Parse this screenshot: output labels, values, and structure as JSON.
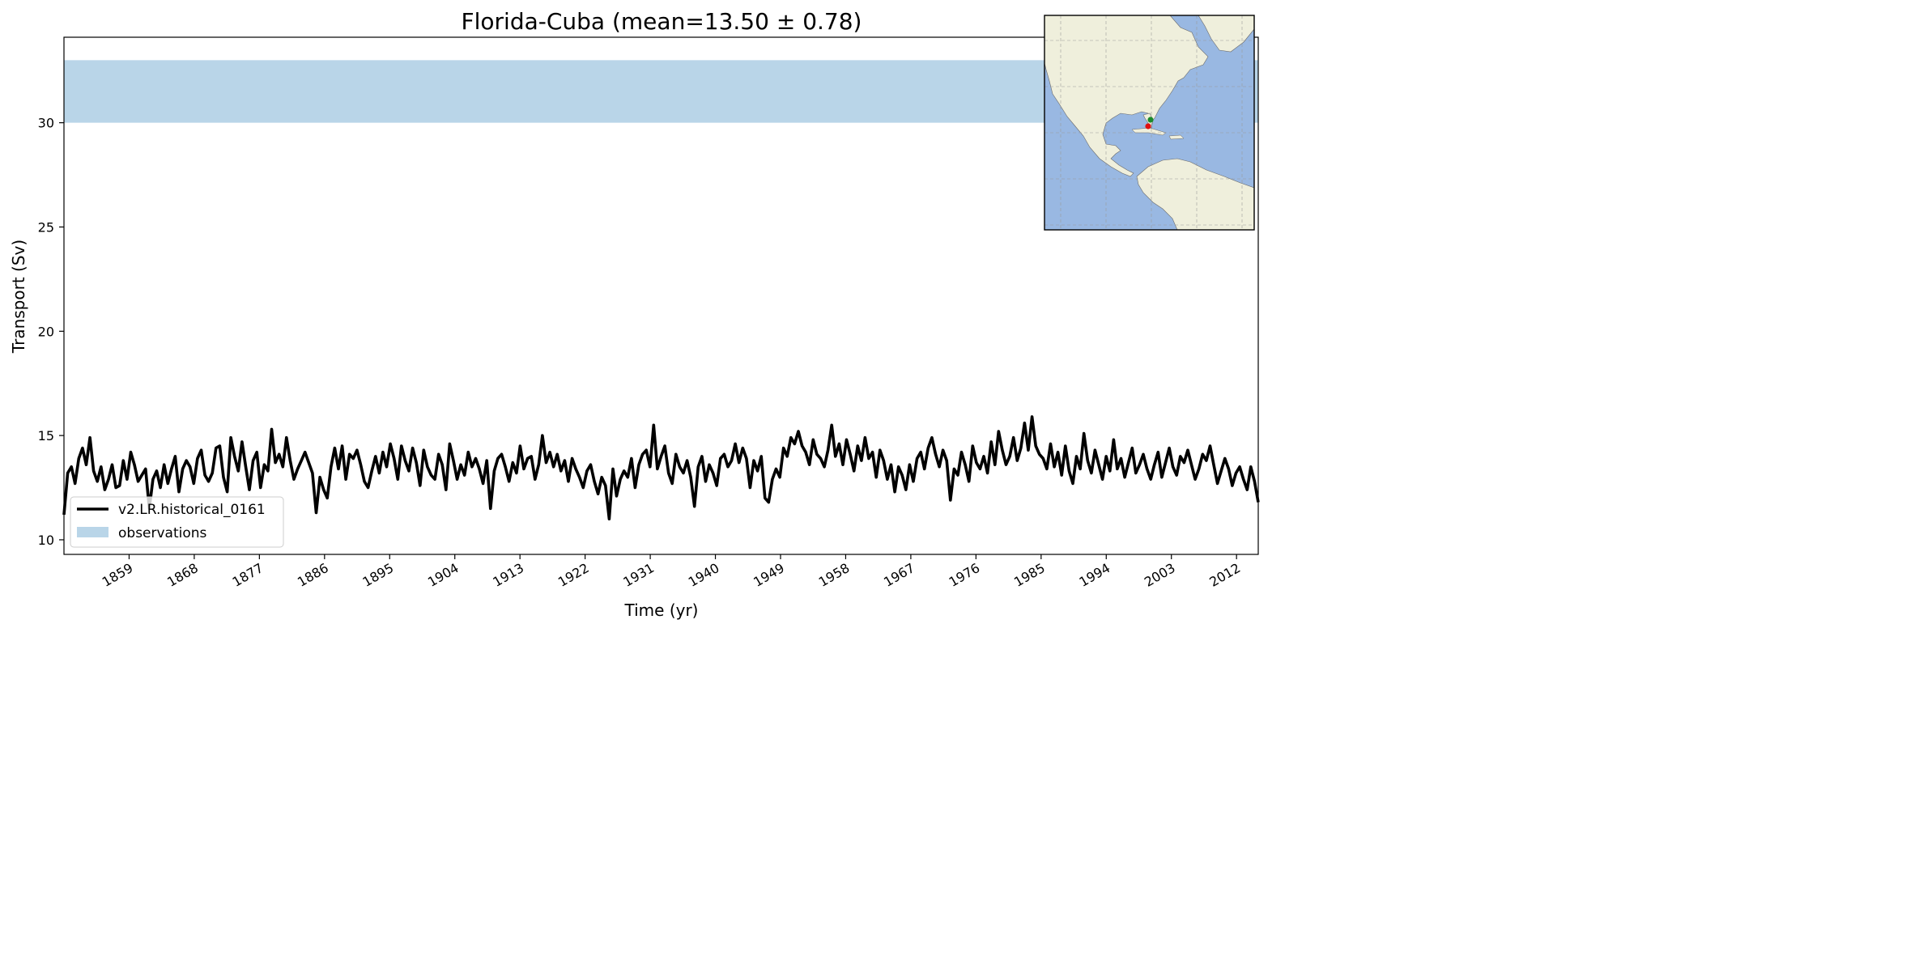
{
  "chart_data": {
    "type": "line",
    "title": "Florida-Cuba (mean=13.50 ± 0.78)",
    "xlabel": "Time (yr)",
    "ylabel": "Transport (Sv)",
    "xlim": [
      1850,
      2015
    ],
    "ylim": [
      9.3,
      34.1
    ],
    "x_ticks": [
      1859,
      1868,
      1877,
      1886,
      1895,
      1904,
      1913,
      1922,
      1931,
      1940,
      1949,
      1958,
      1967,
      1976,
      1985,
      1994,
      2003,
      2012
    ],
    "y_ticks": [
      10,
      15,
      20,
      25,
      30
    ],
    "grid": false,
    "legend_position": "lower-left",
    "series": [
      {
        "name": "v2.LR.historical_0161",
        "color": "#000000",
        "style": "line",
        "x_start": 1850,
        "x_end": 2015,
        "values": [
          11.2,
          13.2,
          13.5,
          12.7,
          13.9,
          14.4,
          13.6,
          14.9,
          13.3,
          12.8,
          13.5,
          12.4,
          12.9,
          13.6,
          12.5,
          12.6,
          13.8,
          12.9,
          14.2,
          13.6,
          12.8,
          13.1,
          13.4,
          11.5,
          12.9,
          13.3,
          12.5,
          13.6,
          12.7,
          13.4,
          14.0,
          12.3,
          13.4,
          13.8,
          13.5,
          12.7,
          13.9,
          14.3,
          13.1,
          12.8,
          13.2,
          14.4,
          14.5,
          13.0,
          12.3,
          14.9,
          14.0,
          13.3,
          14.7,
          13.5,
          12.4,
          13.8,
          14.2,
          12.5,
          13.6,
          13.3,
          15.3,
          13.7,
          14.1,
          13.5,
          14.9,
          13.8,
          12.9,
          13.4,
          13.8,
          14.2,
          13.7,
          13.2,
          11.3,
          13.0,
          12.4,
          12.0,
          13.5,
          14.4,
          13.4,
          14.5,
          12.9,
          14.1,
          13.9,
          14.3,
          13.6,
          12.8,
          12.5,
          13.3,
          14.0,
          13.2,
          14.2,
          13.5,
          14.6,
          13.9,
          12.9,
          14.5,
          13.8,
          13.3,
          14.4,
          13.7,
          12.6,
          14.3,
          13.5,
          13.1,
          12.9,
          14.1,
          13.6,
          12.4,
          14.6,
          13.8,
          12.9,
          13.6,
          13.1,
          14.2,
          13.5,
          13.9,
          13.4,
          12.7,
          13.8,
          11.5,
          13.3,
          13.9,
          14.1,
          13.5,
          12.8,
          13.7,
          13.2,
          14.5,
          13.4,
          13.9,
          14.0,
          12.9,
          13.6,
          15.0,
          13.7,
          14.2,
          13.5,
          14.1,
          13.3,
          13.8,
          12.8,
          13.9,
          13.4,
          13.0,
          12.5,
          13.3,
          13.6,
          12.8,
          12.2,
          13.0,
          12.6,
          11.0,
          13.4,
          12.1,
          12.9,
          13.3,
          13.0,
          13.9,
          12.5,
          13.6,
          14.1,
          14.3,
          13.5,
          15.5,
          13.4,
          14.0,
          14.5,
          13.2,
          12.7,
          14.1,
          13.5,
          13.2,
          13.8,
          13.0,
          11.6,
          13.5,
          14.0,
          12.8,
          13.6,
          13.2,
          12.6,
          13.9,
          14.1,
          13.5,
          13.8,
          14.6,
          13.7,
          14.4,
          13.9,
          12.5,
          13.8,
          13.3,
          14.0,
          12.0,
          11.8,
          12.9,
          13.4,
          13.0,
          14.4,
          14.0,
          14.9,
          14.6,
          15.2,
          14.5,
          14.2,
          13.6,
          14.8,
          14.1,
          13.9,
          13.5,
          14.3,
          15.5,
          14.0,
          14.6,
          13.6,
          14.8,
          14.1,
          13.3,
          14.5,
          13.8,
          14.9,
          13.9,
          14.2,
          13.0,
          14.3,
          13.8,
          12.9,
          13.6,
          12.3,
          13.5,
          13.1,
          12.4,
          13.6,
          12.8,
          13.9,
          14.2,
          13.4,
          14.4,
          14.9,
          14.1,
          13.5,
          14.3,
          13.8,
          11.9,
          13.4,
          13.1,
          14.2,
          13.6,
          12.8,
          14.5,
          13.7,
          13.4,
          14.0,
          13.2,
          14.7,
          13.6,
          15.2,
          14.3,
          13.6,
          14.0,
          14.9,
          13.8,
          14.4,
          15.6,
          14.3,
          15.9,
          14.5,
          14.1,
          13.9,
          13.4,
          14.6,
          13.5,
          14.2,
          13.1,
          14.5,
          13.3,
          12.7,
          14.0,
          13.4,
          15.1,
          13.8,
          13.2,
          14.3,
          13.6,
          12.9,
          14.0,
          13.3,
          14.8,
          13.4,
          13.9,
          13.0,
          13.7,
          14.4,
          13.2,
          13.6,
          14.1,
          13.4,
          12.9,
          13.6,
          14.2,
          13.0,
          13.7,
          14.4,
          13.5,
          13.1,
          14.0,
          13.7,
          14.3,
          13.6,
          12.9,
          13.4,
          14.1,
          13.8,
          14.5,
          13.6,
          12.7,
          13.3,
          13.9,
          13.4,
          12.6,
          13.2,
          13.5,
          12.9,
          12.4,
          13.5,
          12.8,
          11.8
        ]
      },
      {
        "name": "observations",
        "color": "#b9d5e8",
        "style": "band",
        "y_range": [
          30.0,
          33.0
        ]
      }
    ]
  },
  "inset_map": {
    "region": "North and South America, Atlantic Ocean",
    "ocean_color": "#99b8e2",
    "land_color": "#efefdc",
    "markers": [
      {
        "color": "#1a8a2a",
        "lon": -80.0,
        "lat": 26.0
      },
      {
        "color": "#e01010",
        "lon": -80.5,
        "lat": 23.0
      }
    ]
  }
}
